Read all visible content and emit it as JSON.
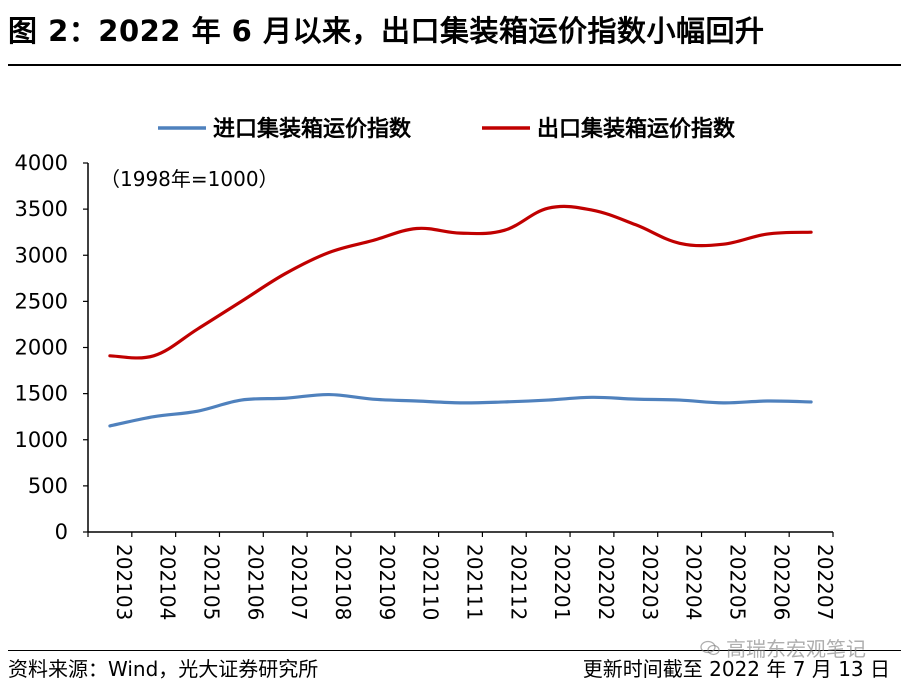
{
  "figure": {
    "title": "图 2：2022 年 6 月以来，出口集装箱运价指数小幅回升",
    "source": "资料来源：Wind，光大证券研究所",
    "updated": "更新时间截至 2022 年 7 月 13 日",
    "watermark": "高瑞东宏观笔记"
  },
  "chart_data": {
    "type": "line",
    "title": "",
    "annotation": "（1998年=1000）",
    "xlabel": "",
    "ylabel": "",
    "ylim": [
      0,
      4000
    ],
    "yticks": [
      0,
      500,
      1000,
      1500,
      2000,
      2500,
      3000,
      3500,
      4000
    ],
    "categories": [
      "202103",
      "202104",
      "202105",
      "202106",
      "202107",
      "202108",
      "202109",
      "202110",
      "202111",
      "202112",
      "202201",
      "202202",
      "202203",
      "202204",
      "202205",
      "202206",
      "202207"
    ],
    "legend_position": "top",
    "series": [
      {
        "name": "进口集装箱运价指数",
        "color": "#4f81bd",
        "values": [
          1150,
          1250,
          1310,
          1430,
          1450,
          1490,
          1440,
          1420,
          1400,
          1410,
          1430,
          1460,
          1440,
          1430,
          1400,
          1420,
          1410
        ]
      },
      {
        "name": "出口集装箱运价指数",
        "color": "#c00000",
        "values": [
          1910,
          1910,
          2200,
          2500,
          2800,
          3030,
          3160,
          3290,
          3240,
          3270,
          3510,
          3490,
          3330,
          3130,
          3120,
          3230,
          3250
        ]
      }
    ]
  }
}
